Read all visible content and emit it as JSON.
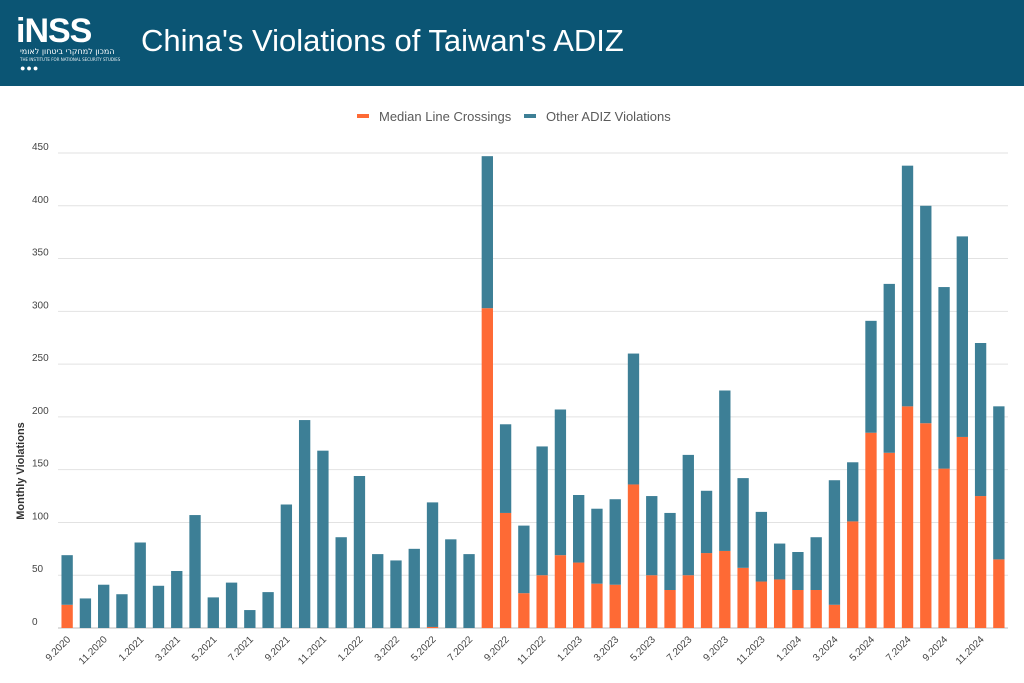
{
  "header": {
    "title": "China's Violations of Taiwan's ADIZ",
    "logo_text": "iNSS",
    "logo_tagline": "המכון למחקרי ביטחון לאומי",
    "logo_subtitle": "THE INSTITUTE FOR NATIONAL SECURITY STUDIES"
  },
  "colors": {
    "header_bg": "#0b5574",
    "median": "#fe6a35",
    "other": "#3d7f96",
    "grid": "#e2e2e2"
  },
  "chart_data": {
    "type": "bar",
    "stacked": true,
    "ylabel": "Monthly Violations",
    "ylim": [
      0,
      450
    ],
    "yticks": [
      0,
      50,
      100,
      150,
      200,
      250,
      300,
      350,
      400,
      450
    ],
    "grid": true,
    "legend_position": "top-center",
    "categories": [
      "9.2020",
      "10.2020",
      "11.2020",
      "12.2020",
      "1.2021",
      "2.2021",
      "3.2021",
      "4.2021",
      "5.2021",
      "6.2021",
      "7.2021",
      "8.2021",
      "9.2021",
      "10.2021",
      "11.2021",
      "12.2021",
      "1.2022",
      "2.2022",
      "3.2022",
      "4.2022",
      "5.2022",
      "6.2022",
      "7.2022",
      "8.2022",
      "9.2022",
      "10.2022",
      "11.2022",
      "12.2022",
      "1.2023",
      "2.2023",
      "3.2023",
      "4.2023",
      "5.2023",
      "6.2023",
      "7.2023",
      "8.2023",
      "9.2023",
      "10.2023",
      "11.2023",
      "12.2023",
      "1.2024",
      "2.2024",
      "3.2024",
      "4.2024",
      "5.2024",
      "6.2024",
      "7.2024",
      "8.2024",
      "9.2024",
      "10.2024",
      "11.2024",
      "12.2024"
    ],
    "tick_labels": [
      "9.2020",
      "11.2020",
      "1.2021",
      "3.2021",
      "5.2021",
      "7.2021",
      "9.2021",
      "11.2021",
      "1.2022",
      "3.2022",
      "5.2022",
      "7.2022",
      "9.2022",
      "11.2022",
      "1.2023",
      "3.2023",
      "5.2023",
      "7.2023",
      "9.2023",
      "11.2023",
      "1.2024",
      "3.2024",
      "5.2024",
      "7.2024",
      "9.2024",
      "11.2024"
    ],
    "series": [
      {
        "name": "Median Line Crossings",
        "values": [
          22,
          0,
          0,
          0,
          0,
          0,
          0,
          0,
          0,
          0,
          0,
          0,
          0,
          0,
          0,
          0,
          0,
          0,
          0,
          0,
          1,
          0,
          0,
          303,
          109,
          33,
          50,
          69,
          62,
          42,
          41,
          136,
          50,
          36,
          50,
          71,
          73,
          57,
          44,
          46,
          36,
          36,
          22,
          101,
          185,
          166,
          210,
          194,
          151,
          181,
          125,
          65
        ]
      },
      {
        "name": "Other ADIZ Violations",
        "values": [
          47,
          28,
          41,
          32,
          81,
          40,
          54,
          107,
          29,
          43,
          17,
          34,
          117,
          197,
          168,
          86,
          144,
          70,
          64,
          75,
          118,
          84,
          70,
          144,
          84,
          64,
          122,
          138,
          64,
          71,
          81,
          124,
          75,
          73,
          114,
          59,
          152,
          85,
          66,
          34,
          36,
          50,
          118,
          56,
          106,
          160,
          228,
          206,
          172,
          190,
          145,
          145
        ]
      }
    ]
  }
}
